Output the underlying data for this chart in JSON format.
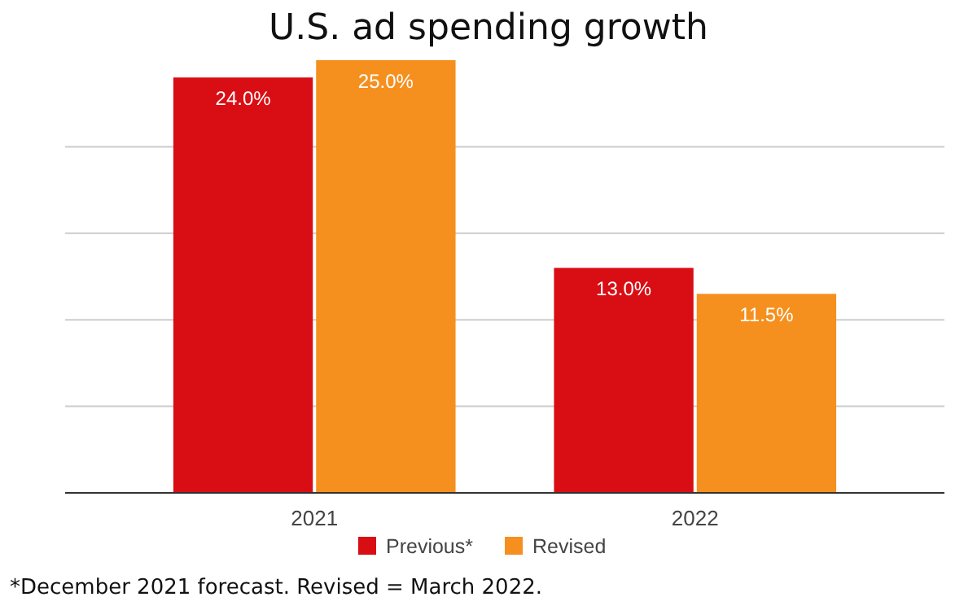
{
  "chart_data": {
    "type": "bar",
    "title": "U.S. ad spending growth",
    "categories": [
      "2021",
      "2022"
    ],
    "series": [
      {
        "name": "Previous*",
        "color": "#d90d14",
        "values": [
          24.0,
          13.0
        ],
        "value_labels": [
          "24.0%",
          "13.0%"
        ]
      },
      {
        "name": "Revised",
        "color": "#f5901e",
        "values": [
          25.0,
          11.5
        ],
        "value_labels": [
          "25.0%",
          "11.5%"
        ]
      }
    ],
    "ylim": [
      0,
      25
    ],
    "yticks": [
      {
        "value": 0,
        "label": null
      },
      {
        "value": 5,
        "label": null
      },
      {
        "value": 10,
        "label": null
      },
      {
        "value": 15,
        "label": null
      },
      {
        "value": 20,
        "label": null
      }
    ],
    "tick_labels": "x",
    "grid": "y",
    "legend": "bottom",
    "annotations": [
      "*December 2021 forecast. Revised = March 2022."
    ]
  }
}
